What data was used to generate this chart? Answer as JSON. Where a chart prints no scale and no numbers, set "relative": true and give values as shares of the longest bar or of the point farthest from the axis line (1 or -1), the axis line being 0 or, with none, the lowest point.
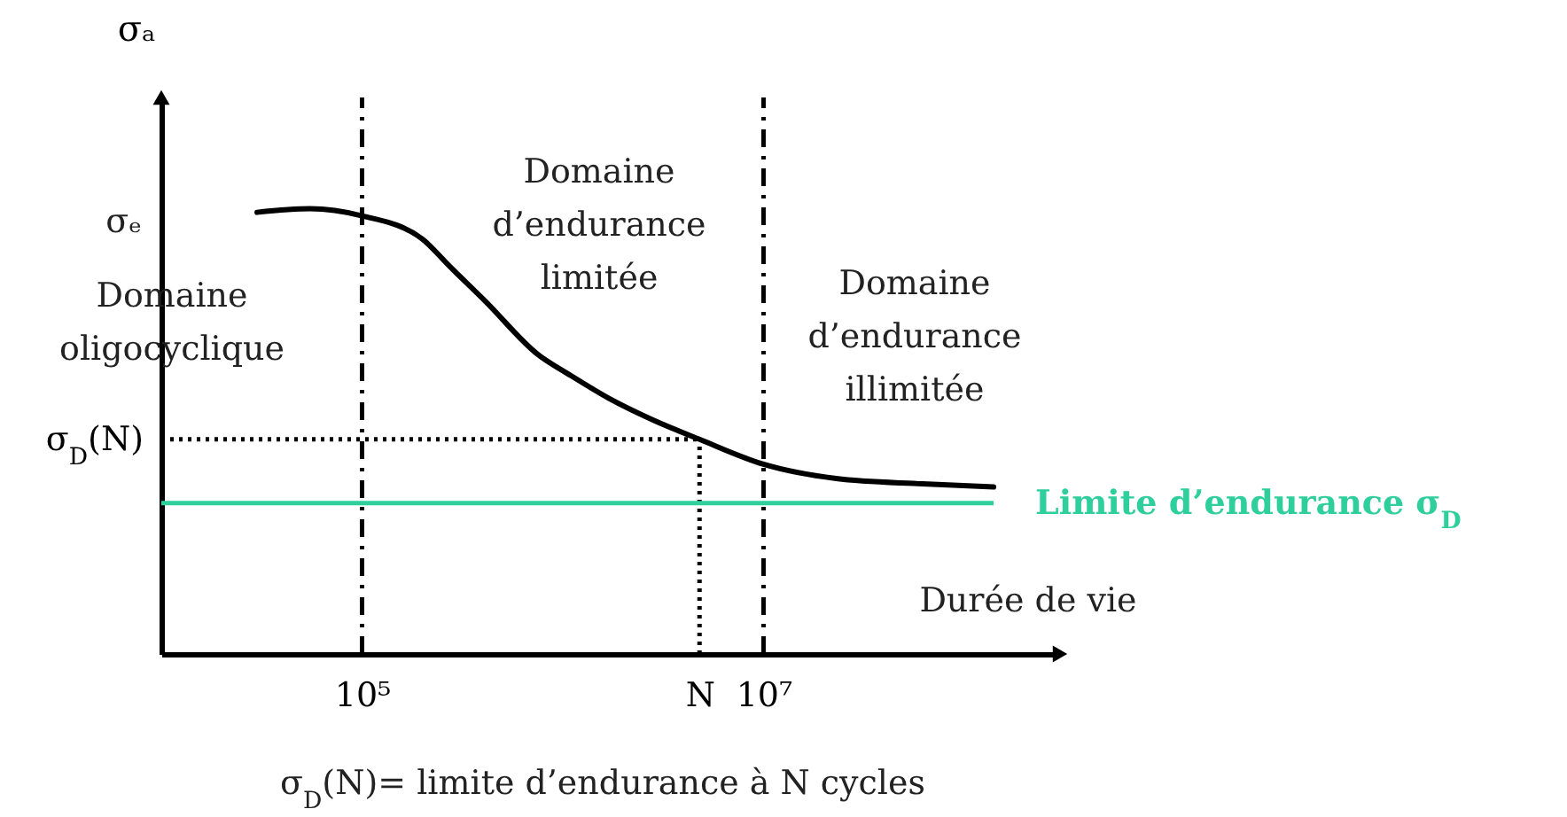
{
  "chart_data": {
    "type": "line",
    "relative": true,
    "log": "x",
    "xlabel": "Durée de vie",
    "ylabel": "σₐ",
    "xlim": [
      10000,
      300000000
    ],
    "xticks": [
      {
        "value": 100000,
        "label": "10⁵"
      },
      {
        "value": 4800000,
        "label": "N"
      },
      {
        "value": 10000000,
        "label": "10⁷"
      }
    ],
    "series": [
      {
        "color": "#000000",
        "x": [
          30000,
          55000,
          100000,
          200000,
          270000,
          410000,
          750000,
          1100000,
          1700000,
          2800000,
          4800000,
          10000000,
          23000000,
          62000000,
          140000000
        ],
        "values": [
          0.992,
          1,
          0.984,
          0.932,
          0.873,
          0.793,
          0.673,
          0.625,
          0.574,
          0.526,
          0.482,
          0.426,
          0.394,
          0.382,
          0.375
        ]
      }
    ],
    "ref_lines": [
      {
        "axis": "x",
        "value": 100000,
        "line_style": "dashed",
        "color": "#000000"
      },
      {
        "axis": "x",
        "value": 10000000,
        "line_style": "dashed",
        "color": "#000000"
      },
      {
        "axis": "x",
        "value": 4800000,
        "line_style": "dotted",
        "color": "#000000"
      },
      {
        "axis": "y",
        "value": 0.482,
        "line_style": "dotted",
        "color": "#000000",
        "label": "σ$_{D}$(N)"
      },
      {
        "axis": "y",
        "value": 0.339,
        "line_style": "solid",
        "color": "#2ecf9b",
        "label": "Limite d’endurance    σ$_{D}$"
      }
    ],
    "annotations": [
      "σₑ",
      "Domaine\noligocyclique",
      "Domaine\nd’endurance\nlimitée",
      "Domaine\nd’endurance\nillimitée",
      "σ$_{D}$(N)= limite d’endurance à N cycles"
    ]
  }
}
